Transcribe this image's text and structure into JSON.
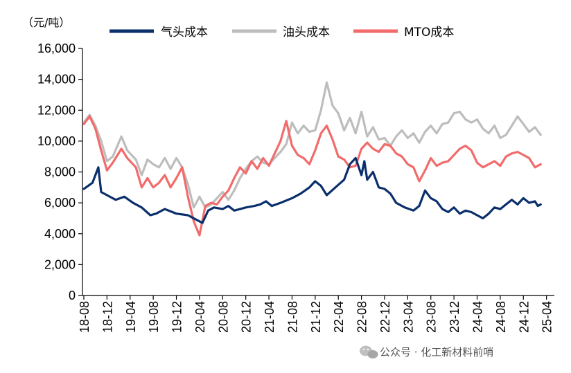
{
  "chart_data": {
    "type": "line",
    "title": "",
    "unit_label": "（元/吨）",
    "xlabel": "",
    "ylabel": "",
    "ylim": [
      0,
      16000
    ],
    "y_ticks": [
      0,
      2000,
      4000,
      6000,
      8000,
      10000,
      12000,
      14000,
      16000
    ],
    "y_tick_labels": [
      "0",
      "2,000",
      "4,000",
      "6,000",
      "8,000",
      "10,000",
      "12,000",
      "14,000",
      "16,000"
    ],
    "x_tick_labels": [
      "18-08",
      "18-12",
      "19-04",
      "19-08",
      "19-12",
      "20-04",
      "20-08",
      "20-12",
      "21-04",
      "21-08",
      "21-12",
      "22-04",
      "22-08",
      "22-12",
      "23-04",
      "23-08",
      "23-12",
      "24-04",
      "24-08",
      "24-12",
      "25-04"
    ],
    "x_start": "2018-08",
    "period_months": 81,
    "legend_position": "top",
    "series": [
      {
        "name": "气头成本",
        "color": "#0a2f6b",
        "points": [
          [
            0,
            6900
          ],
          [
            1.5,
            7300
          ],
          [
            2.5,
            8300
          ],
          [
            3,
            6700
          ],
          [
            4,
            6500
          ],
          [
            5.5,
            6200
          ],
          [
            7,
            6400
          ],
          [
            8.5,
            6000
          ],
          [
            10,
            5700
          ],
          [
            11.5,
            5200
          ],
          [
            12.5,
            5300
          ],
          [
            14,
            5600
          ],
          [
            16,
            5300
          ],
          [
            18,
            5200
          ],
          [
            19.5,
            4900
          ],
          [
            20.5,
            4700
          ],
          [
            21.5,
            5500
          ],
          [
            22.5,
            5700
          ],
          [
            24,
            5600
          ],
          [
            25,
            5800
          ],
          [
            26,
            5500
          ],
          [
            28,
            5700
          ],
          [
            29.5,
            5800
          ],
          [
            30.5,
            5900
          ],
          [
            31.5,
            6100
          ],
          [
            32.5,
            5800
          ],
          [
            34,
            6000
          ],
          [
            36,
            6300
          ],
          [
            37.5,
            6600
          ],
          [
            39,
            7000
          ],
          [
            40,
            7400
          ],
          [
            41,
            7100
          ],
          [
            42,
            6500
          ],
          [
            43.5,
            7000
          ],
          [
            45,
            7500
          ],
          [
            46,
            8500
          ],
          [
            47,
            8900
          ],
          [
            48,
            7800
          ],
          [
            48.5,
            8700
          ],
          [
            49,
            7500
          ],
          [
            50,
            8000
          ],
          [
            51,
            7000
          ],
          [
            52,
            6900
          ],
          [
            53,
            6600
          ],
          [
            54,
            6000
          ],
          [
            55.5,
            5700
          ],
          [
            57,
            5500
          ],
          [
            58,
            5800
          ],
          [
            59,
            6800
          ],
          [
            60,
            6300
          ],
          [
            61,
            6100
          ],
          [
            62,
            5600
          ],
          [
            63,
            5400
          ],
          [
            64,
            5700
          ],
          [
            65,
            5300
          ],
          [
            66,
            5500
          ],
          [
            67,
            5400
          ],
          [
            68,
            5200
          ],
          [
            69,
            5000
          ],
          [
            70,
            5300
          ],
          [
            71,
            5700
          ],
          [
            72,
            5600
          ],
          [
            73,
            5900
          ],
          [
            74,
            6200
          ],
          [
            75,
            5900
          ],
          [
            76,
            6300
          ],
          [
            77,
            6000
          ],
          [
            78,
            6100
          ],
          [
            78.5,
            5800
          ],
          [
            79,
            5900
          ]
        ]
      },
      {
        "name": "油头成本",
        "color": "#bdbdbd",
        "points": [
          [
            0,
            11200
          ],
          [
            1,
            11700
          ],
          [
            2,
            11000
          ],
          [
            3,
            10000
          ],
          [
            4,
            8700
          ],
          [
            5,
            9000
          ],
          [
            6.5,
            10300
          ],
          [
            7.5,
            9400
          ],
          [
            9,
            8800
          ],
          [
            10,
            7800
          ],
          [
            11,
            8800
          ],
          [
            12,
            8500
          ],
          [
            13,
            8300
          ],
          [
            14,
            8900
          ],
          [
            15,
            8200
          ],
          [
            16,
            8900
          ],
          [
            17,
            8300
          ],
          [
            18,
            7200
          ],
          [
            19,
            5700
          ],
          [
            20,
            6400
          ],
          [
            21,
            5700
          ],
          [
            22,
            5900
          ],
          [
            23,
            6300
          ],
          [
            24,
            6700
          ],
          [
            25,
            6200
          ],
          [
            26,
            6800
          ],
          [
            27,
            7600
          ],
          [
            28,
            8200
          ],
          [
            29,
            8700
          ],
          [
            30,
            9000
          ],
          [
            31,
            8600
          ],
          [
            32,
            8500
          ],
          [
            33,
            8900
          ],
          [
            34,
            9300
          ],
          [
            35,
            9800
          ],
          [
            36,
            11200
          ],
          [
            37,
            10500
          ],
          [
            38,
            11000
          ],
          [
            39,
            10600
          ],
          [
            40,
            10700
          ],
          [
            41,
            12000
          ],
          [
            42,
            13800
          ],
          [
            43,
            12300
          ],
          [
            44,
            11800
          ],
          [
            45,
            10700
          ],
          [
            46,
            11500
          ],
          [
            47,
            10500
          ],
          [
            48,
            11900
          ],
          [
            49,
            10300
          ],
          [
            50,
            10900
          ],
          [
            51,
            10100
          ],
          [
            52,
            10200
          ],
          [
            53,
            9700
          ],
          [
            54,
            10300
          ],
          [
            55,
            10700
          ],
          [
            56,
            10200
          ],
          [
            57,
            10500
          ],
          [
            58,
            9900
          ],
          [
            59,
            10600
          ],
          [
            60,
            11000
          ],
          [
            61,
            10500
          ],
          [
            62,
            11100
          ],
          [
            63,
            11200
          ],
          [
            64,
            11800
          ],
          [
            65,
            11900
          ],
          [
            66,
            11400
          ],
          [
            67,
            11200
          ],
          [
            68,
            11400
          ],
          [
            69,
            10800
          ],
          [
            70,
            10500
          ],
          [
            71,
            11000
          ],
          [
            72,
            10200
          ],
          [
            73,
            10400
          ],
          [
            74,
            11000
          ],
          [
            75,
            11600
          ],
          [
            76,
            11100
          ],
          [
            77,
            10600
          ],
          [
            78,
            10900
          ],
          [
            79,
            10400
          ]
        ]
      },
      {
        "name": "MTO成本",
        "color": "#f26b6b",
        "points": [
          [
            0,
            11100
          ],
          [
            1,
            11600
          ],
          [
            2,
            10800
          ],
          [
            3,
            9400
          ],
          [
            4,
            8100
          ],
          [
            5,
            8600
          ],
          [
            6.5,
            9500
          ],
          [
            7.5,
            8900
          ],
          [
            9,
            8300
          ],
          [
            10,
            7000
          ],
          [
            11,
            7600
          ],
          [
            12,
            7000
          ],
          [
            13,
            7300
          ],
          [
            14,
            7800
          ],
          [
            15,
            7000
          ],
          [
            16,
            7600
          ],
          [
            17,
            8300
          ],
          [
            18,
            6400
          ],
          [
            19,
            4800
          ],
          [
            20,
            3900
          ],
          [
            21,
            5800
          ],
          [
            22,
            6000
          ],
          [
            23,
            5900
          ],
          [
            24,
            6400
          ],
          [
            25,
            6800
          ],
          [
            26,
            7600
          ],
          [
            27,
            8300
          ],
          [
            28,
            7900
          ],
          [
            29,
            8700
          ],
          [
            30,
            8200
          ],
          [
            31,
            8900
          ],
          [
            32,
            8400
          ],
          [
            33,
            9200
          ],
          [
            34,
            10000
          ],
          [
            35,
            11300
          ],
          [
            36,
            9700
          ],
          [
            37,
            9100
          ],
          [
            38,
            8900
          ],
          [
            39,
            8500
          ],
          [
            40,
            9400
          ],
          [
            41,
            10500
          ],
          [
            42,
            11000
          ],
          [
            43,
            10100
          ],
          [
            44,
            9000
          ],
          [
            45,
            8800
          ],
          [
            46,
            8300
          ],
          [
            47,
            8400
          ],
          [
            48,
            9500
          ],
          [
            49,
            9900
          ],
          [
            50,
            9500
          ],
          [
            51,
            9300
          ],
          [
            52,
            9800
          ],
          [
            53,
            9700
          ],
          [
            54,
            9200
          ],
          [
            55,
            9000
          ],
          [
            56,
            8500
          ],
          [
            57,
            8300
          ],
          [
            58,
            7400
          ],
          [
            59,
            8100
          ],
          [
            60,
            8900
          ],
          [
            61,
            8400
          ],
          [
            62,
            8600
          ],
          [
            63,
            8700
          ],
          [
            64,
            9100
          ],
          [
            65,
            9500
          ],
          [
            66,
            9700
          ],
          [
            67,
            9400
          ],
          [
            68,
            8600
          ],
          [
            69,
            8300
          ],
          [
            70,
            8500
          ],
          [
            71,
            8700
          ],
          [
            72,
            8400
          ],
          [
            73,
            9000
          ],
          [
            74,
            9200
          ],
          [
            75,
            9300
          ],
          [
            76,
            9100
          ],
          [
            77,
            8900
          ],
          [
            78,
            8300
          ],
          [
            79,
            8500
          ]
        ]
      }
    ]
  },
  "watermark": {
    "text": "公众号 · 化工新材料前哨",
    "icon": "wechat-icon"
  }
}
